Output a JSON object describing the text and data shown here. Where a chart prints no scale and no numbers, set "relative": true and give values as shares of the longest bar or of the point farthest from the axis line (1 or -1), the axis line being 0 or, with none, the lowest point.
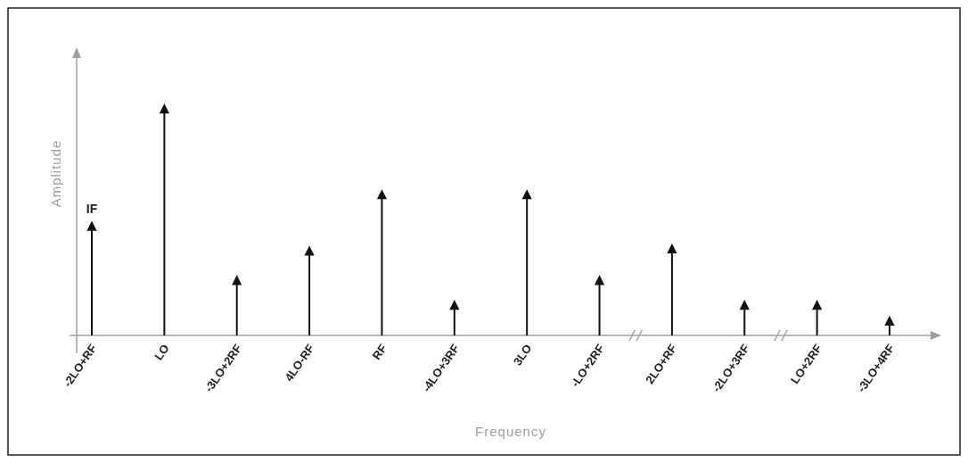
{
  "chart_data": {
    "type": "lollipop",
    "relative": true,
    "xlabel": "Frequency",
    "ylabel": "Amplitude",
    "categories": [
      "-2LO+RF",
      "LO",
      "-3LO+2RF",
      "4LO-RF",
      "RF",
      "-4LO+3RF",
      "3LO",
      "-LO+2RF",
      "2LO+RF",
      "-2LO+3RF",
      "LO+2RF",
      "-3LO+4RF"
    ],
    "series": [
      {
        "color": "#111111",
        "values": [
          0.48,
          1,
          0.24,
          0.37,
          0.62,
          0.13,
          0.62,
          0.24,
          0.38,
          0.13,
          0.13,
          0.06
        ]
      }
    ],
    "annotations": [
      {
        "text": "IF",
        "x": "-2LO+RF",
        "y": 0.48
      }
    ],
    "marker": "triangle"
  }
}
